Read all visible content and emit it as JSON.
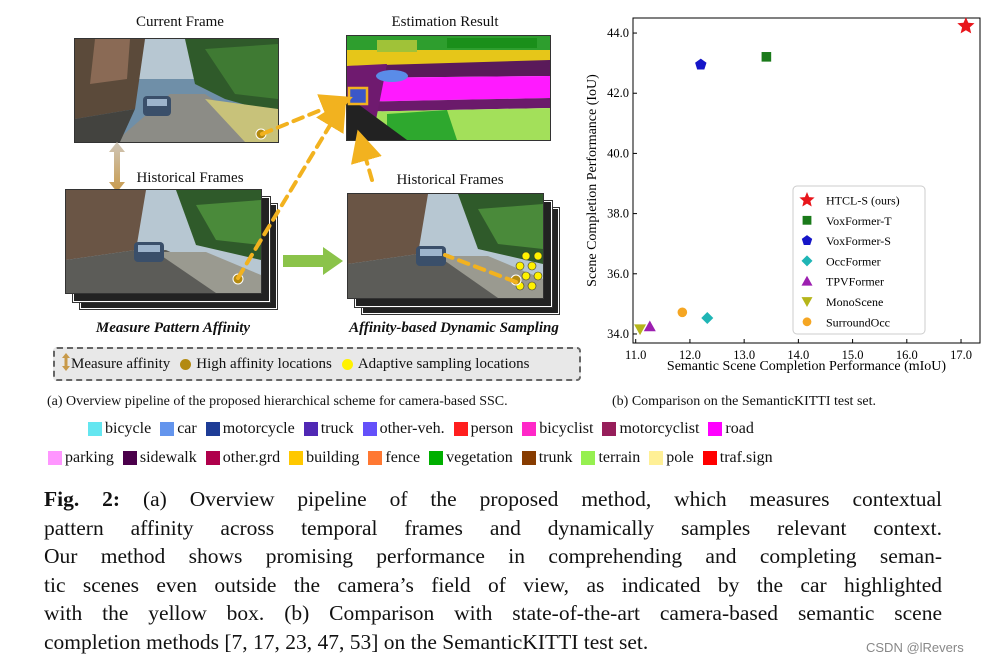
{
  "left": {
    "current_frame": "Current Frame",
    "estimation_result": "Estimation Result",
    "historical_frames_left": "Historical Frames",
    "historical_frames_right": "Historical Frames",
    "measure_title": "Measure Pattern Affinity",
    "sampling_title": "Affinity-based Dynamic Sampling",
    "legend": {
      "measure": "Measure affinity",
      "high": "High affinity locations",
      "adaptive": "Adaptive sampling locations"
    },
    "colors": {
      "arrow": "#f2b21f",
      "high_dot": "#b38a10",
      "adaptive_dot": "#fff200",
      "green_arrow": "#8bc34a"
    }
  },
  "subcaptions": {
    "a": "(a) Overview pipeline of the proposed hierarchical scheme for camera-based SSC.",
    "b": "(b) Comparison on the SemanticKITTI test set."
  },
  "chart_data": {
    "type": "scatter",
    "title": "",
    "xlabel": "Semantic Scene Completion Performance (mIoU)",
    "ylabel": "Scene Completion Performance (IoU)",
    "xlim": [
      10.95,
      17.35
    ],
    "ylim": [
      33.7,
      44.5
    ],
    "xticks": [
      11.0,
      12.0,
      13.0,
      14.0,
      15.0,
      16.0,
      17.0
    ],
    "yticks": [
      34.0,
      36.0,
      38.0,
      40.0,
      42.0,
      44.0
    ],
    "grid": false,
    "legend_position": "lower-right",
    "series": [
      {
        "name": "HTCL-S (ours)",
        "marker": "star",
        "color": "#e8151b",
        "x": 17.09,
        "y": 44.23
      },
      {
        "name": "VoxFormer-T",
        "marker": "square",
        "color": "#1a7a1a",
        "x": 13.41,
        "y": 43.21
      },
      {
        "name": "VoxFormer-S",
        "marker": "pentagon",
        "color": "#1515c8",
        "x": 12.2,
        "y": 42.95
      },
      {
        "name": "OccFormer",
        "marker": "diamond",
        "color": "#1fb5b5",
        "x": 12.32,
        "y": 34.53
      },
      {
        "name": "TPVFormer",
        "marker": "triangle-up",
        "color": "#9c1fb0",
        "x": 11.26,
        "y": 34.25
      },
      {
        "name": "MonoScene",
        "marker": "triangle-down",
        "color": "#b5b51a",
        "x": 11.08,
        "y": 34.16
      },
      {
        "name": "SurroundOcc",
        "marker": "circle",
        "color": "#f5a623",
        "x": 11.86,
        "y": 34.72
      }
    ]
  },
  "classes": {
    "row1": [
      {
        "label": "bicycle",
        "color": "#64e6f0"
      },
      {
        "label": "car",
        "color": "#6495ed"
      },
      {
        "label": "motorcycle",
        "color": "#1e3c96"
      },
      {
        "label": "truck",
        "color": "#5028b4"
      },
      {
        "label": "other-veh.",
        "color": "#6450fa"
      },
      {
        "label": "person",
        "color": "#ff1e1e"
      },
      {
        "label": "bicyclist",
        "color": "#ff28c8"
      },
      {
        "label": "motorcyclist",
        "color": "#961e5a"
      },
      {
        "label": "road",
        "color": "#ff00ff"
      }
    ],
    "row2": [
      {
        "label": "parking",
        "color": "#ff96ff"
      },
      {
        "label": "sidewalk",
        "color": "#4b004b"
      },
      {
        "label": "other.grd",
        "color": "#af004b"
      },
      {
        "label": "building",
        "color": "#ffc800"
      },
      {
        "label": "fence",
        "color": "#ff7832"
      },
      {
        "label": "vegetation",
        "color": "#00af00"
      },
      {
        "label": "trunk",
        "color": "#873c00"
      },
      {
        "label": "terrain",
        "color": "#96f050"
      },
      {
        "label": "pole",
        "color": "#fff096"
      },
      {
        "label": "traf.sign",
        "color": "#ff0000"
      }
    ]
  },
  "caption": {
    "label": "Fig. 2:",
    "line1": "(a) Overview pipeline of the proposed method, which measures contextual",
    "line2": "pattern affinity across temporal frames and dynamically samples relevant context.",
    "line3": "Our method shows promising performance in comprehending and completing seman-",
    "line4": "tic scenes even outside the camera’s field of view, as indicated by the car highlighted",
    "line5": "with the yellow box. (b) Comparison with state-of-the-art camera-based semantic scene",
    "line6": "completion methods [7, 17, 23, 47, 53] on the SemanticKITTI test set."
  },
  "watermark": "CSDN @lRevers"
}
